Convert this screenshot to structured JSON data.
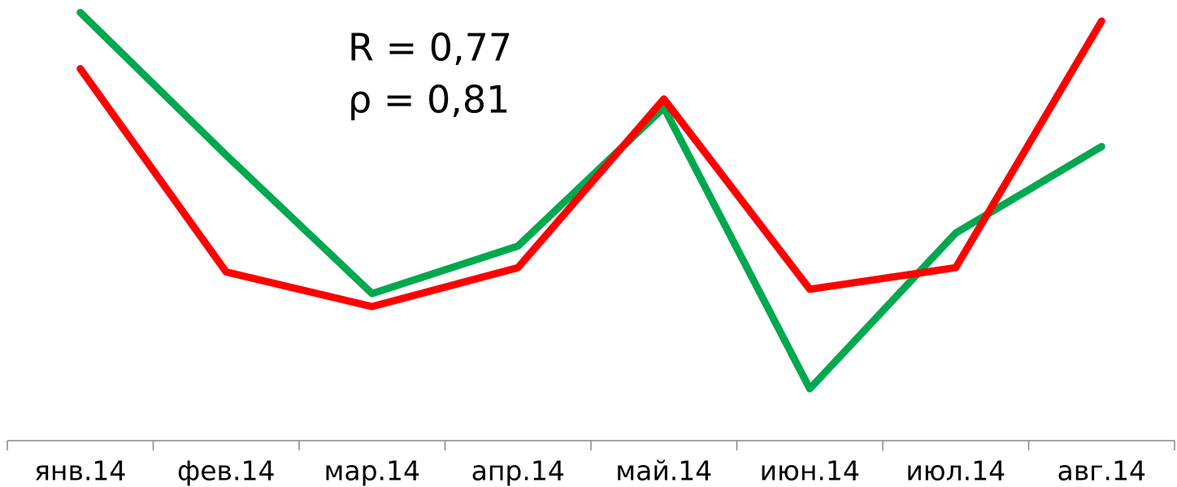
{
  "chart_data": {
    "type": "line",
    "annotations": [
      "R = 0,77",
      "ρ = 0,81"
    ],
    "categories": [
      "янв.14",
      "фев.14",
      "мар.14",
      "апр.14",
      "май.14",
      "июн.14",
      "июл.14",
      "авг.14"
    ],
    "series": [
      {
        "color": "#00a84f",
        "values": [
          99,
          66,
          34,
          45,
          77,
          12,
          48,
          68
        ]
      },
      {
        "color": "#ff0000",
        "values": [
          86,
          39,
          31,
          40,
          79,
          35,
          40,
          97
        ]
      }
    ],
    "ylim": [
      0,
      100
    ]
  }
}
